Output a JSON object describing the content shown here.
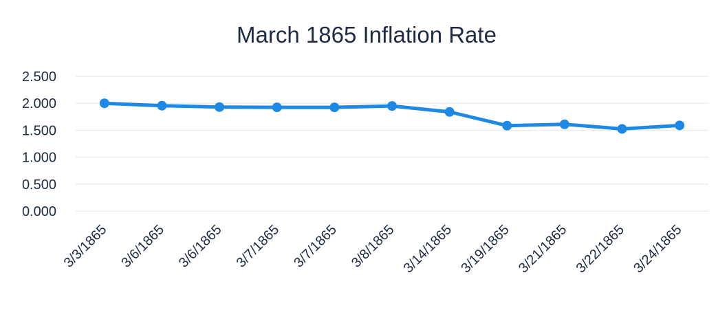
{
  "chart_data": {
    "type": "line",
    "title": "March 1865 Inflation Rate",
    "xlabel": "",
    "ylabel": "",
    "categories": [
      "3/3/1865",
      "3/6/1865",
      "3/6/1865",
      "3/7/1865",
      "3/7/1865",
      "3/8/1865",
      "3/14/1865",
      "3/19/1865",
      "3/21/1865",
      "3/22/1865",
      "3/24/1865"
    ],
    "series": [
      {
        "values": [
          2.0,
          1.955,
          1.93,
          1.925,
          1.925,
          1.95,
          1.84,
          1.585,
          1.61,
          1.525,
          1.59
        ]
      }
    ],
    "ylim": [
      0,
      2.5
    ],
    "yticks": [
      "0.000",
      "0.500",
      "1.000",
      "1.500",
      "2.000",
      "2.500"
    ],
    "yticks_values": [
      0,
      0.5,
      1.0,
      1.5,
      2.0,
      2.5
    ],
    "grid": true,
    "legend": "none",
    "line_color": "#1e88e5"
  }
}
